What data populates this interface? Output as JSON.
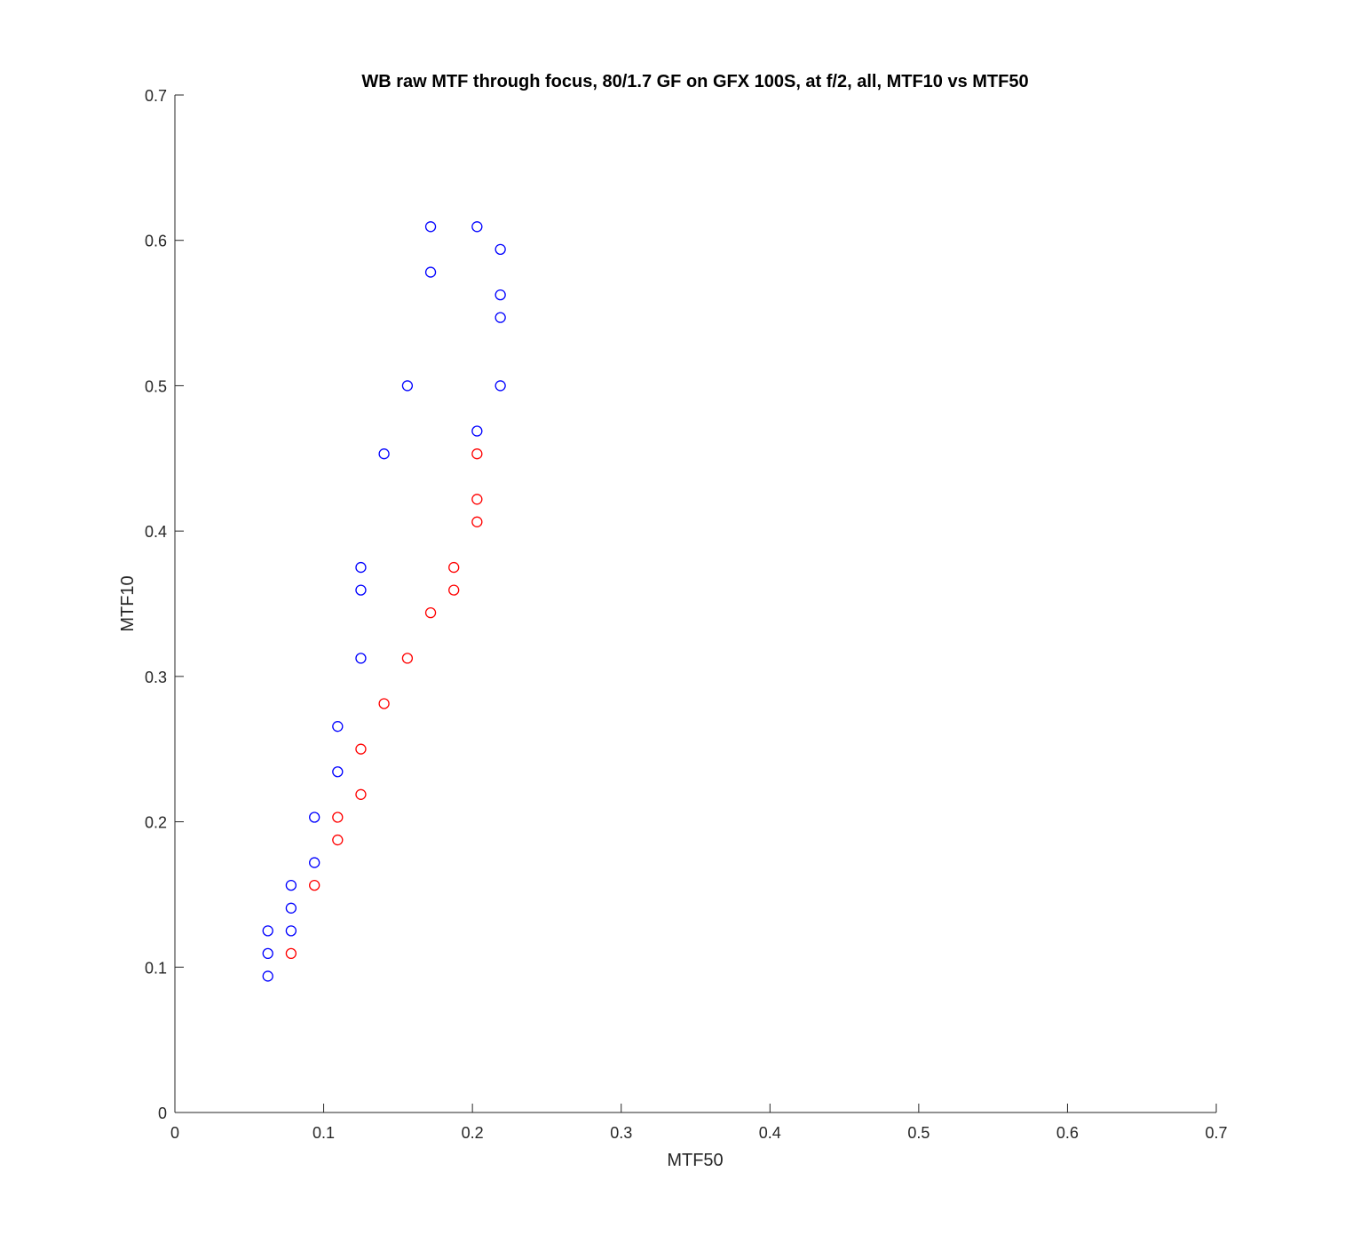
{
  "chart_data": {
    "type": "scatter",
    "title": "WB raw MTF through focus, 80/1.7 GF on GFX 100S, at f/2, all, MTF10 vs MTF50",
    "xlabel": "MTF50",
    "ylabel": "MTF10",
    "xlim": [
      0,
      0.7
    ],
    "ylim": [
      0,
      0.7
    ],
    "xticks": [
      0,
      0.1,
      0.2,
      0.3,
      0.4,
      0.5,
      0.6,
      0.7
    ],
    "yticks": [
      0,
      0.1,
      0.2,
      0.3,
      0.4,
      0.5,
      0.6,
      0.7
    ],
    "xtick_labels": [
      "0",
      "0.1",
      "0.2",
      "0.3",
      "0.4",
      "0.5",
      "0.6",
      "0.7"
    ],
    "ytick_labels": [
      "0",
      "0.1",
      "0.2",
      "0.3",
      "0.4",
      "0.5",
      "0.6",
      "0.7"
    ],
    "grid": false,
    "marker": "open-circle",
    "series": [
      {
        "color": "#0000ff",
        "points": [
          [
            0.0625,
            0.0938
          ],
          [
            0.0625,
            0.1094
          ],
          [
            0.0625,
            0.125
          ],
          [
            0.0781,
            0.125
          ],
          [
            0.0781,
            0.1406
          ],
          [
            0.0781,
            0.1563
          ],
          [
            0.0938,
            0.1719
          ],
          [
            0.0938,
            0.2031
          ],
          [
            0.1094,
            0.2344
          ],
          [
            0.1094,
            0.2656
          ],
          [
            0.125,
            0.3125
          ],
          [
            0.125,
            0.3594
          ],
          [
            0.125,
            0.375
          ],
          [
            0.1406,
            0.4531
          ],
          [
            0.1563,
            0.5
          ],
          [
            0.1719,
            0.5781
          ],
          [
            0.1719,
            0.6094
          ],
          [
            0.2031,
            0.6094
          ],
          [
            0.2031,
            0.4688
          ],
          [
            0.2188,
            0.5938
          ],
          [
            0.2188,
            0.5625
          ],
          [
            0.2188,
            0.5469
          ],
          [
            0.2188,
            0.5
          ]
        ]
      },
      {
        "color": "#ff0000",
        "points": [
          [
            0.0781,
            0.1094
          ],
          [
            0.0938,
            0.1563
          ],
          [
            0.1094,
            0.1875
          ],
          [
            0.1094,
            0.2031
          ],
          [
            0.125,
            0.2188
          ],
          [
            0.125,
            0.25
          ],
          [
            0.1406,
            0.2813
          ],
          [
            0.1563,
            0.3125
          ],
          [
            0.1719,
            0.3438
          ],
          [
            0.1875,
            0.3594
          ],
          [
            0.1875,
            0.375
          ],
          [
            0.2031,
            0.4063
          ],
          [
            0.2031,
            0.4219
          ],
          [
            0.2031,
            0.4531
          ]
        ]
      }
    ]
  }
}
